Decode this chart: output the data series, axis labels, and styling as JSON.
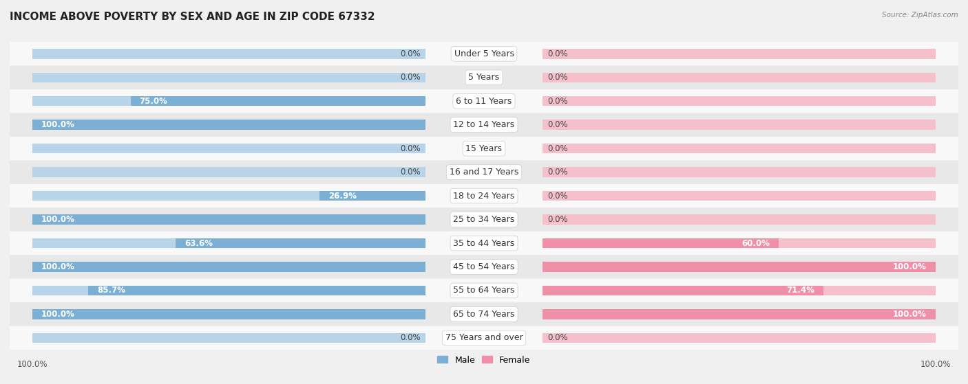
{
  "title": "INCOME ABOVE POVERTY BY SEX AND AGE IN ZIP CODE 67332",
  "source": "Source: ZipAtlas.com",
  "categories": [
    "Under 5 Years",
    "5 Years",
    "6 to 11 Years",
    "12 to 14 Years",
    "15 Years",
    "16 and 17 Years",
    "18 to 24 Years",
    "25 to 34 Years",
    "35 to 44 Years",
    "45 to 54 Years",
    "55 to 64 Years",
    "65 to 74 Years",
    "75 Years and over"
  ],
  "male": [
    0.0,
    0.0,
    75.0,
    100.0,
    0.0,
    0.0,
    26.9,
    100.0,
    63.6,
    100.0,
    85.7,
    100.0,
    0.0
  ],
  "female": [
    0.0,
    0.0,
    0.0,
    0.0,
    0.0,
    0.0,
    0.0,
    0.0,
    60.0,
    100.0,
    71.4,
    100.0,
    0.0
  ],
  "male_color": "#7BAFD4",
  "female_color": "#F090A8",
  "male_color_light": "#B8D4E8",
  "female_color_light": "#F5C0CC",
  "bar_height": 0.42,
  "background_color": "#f0f0f0",
  "row_color_odd": "#f8f8f8",
  "row_color_even": "#e8e8e8",
  "title_fontsize": 11,
  "label_fontsize": 9,
  "value_fontsize": 8.5,
  "axis_label_fontsize": 8.5,
  "min_stub": 8.0
}
